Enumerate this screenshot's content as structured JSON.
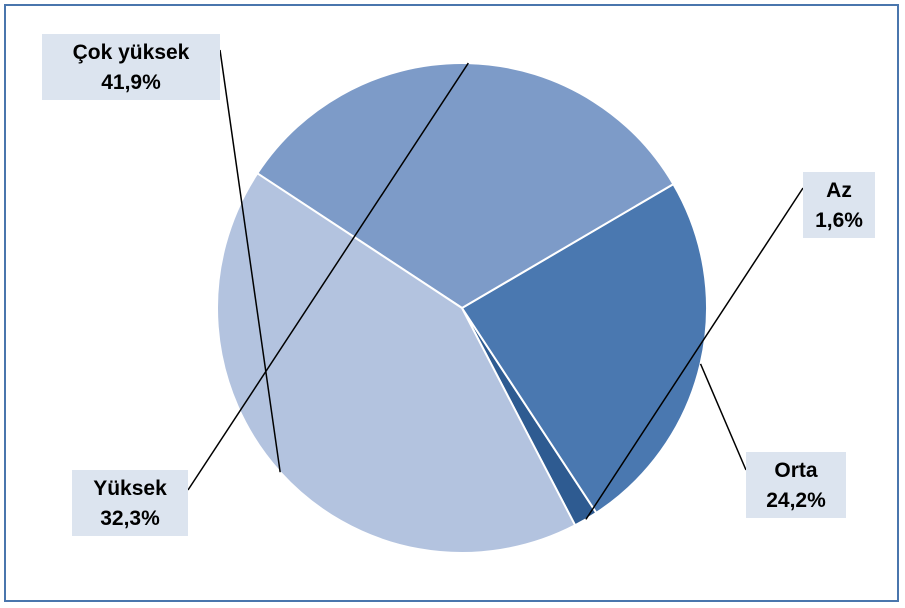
{
  "chart_data": {
    "type": "pie",
    "title": "",
    "slices": [
      {
        "label": "Az",
        "value": 1.6,
        "display": "1,6%",
        "color": "#2e5b91"
      },
      {
        "label": "Orta",
        "value": 24.2,
        "display": "24,2%",
        "color": "#4a78b0"
      },
      {
        "label": "Yüksek",
        "value": 32.3,
        "display": "32,3%",
        "color": "#7d9bc8"
      },
      {
        "label": "Çok yüksek",
        "value": 41.9,
        "display": "41,9%",
        "color": "#b3c3df"
      }
    ],
    "legend": "none",
    "label_box_color": "#dce4ef"
  }
}
